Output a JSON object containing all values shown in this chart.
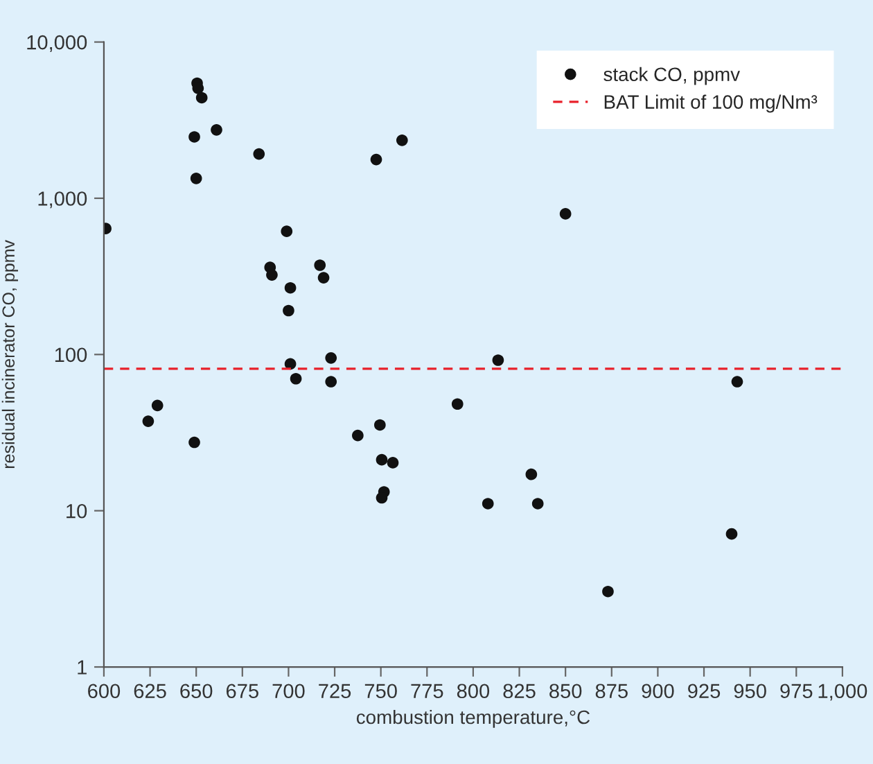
{
  "chart_data": {
    "type": "scatter",
    "xlabel": "combustion temperature,°C",
    "ylabel": "residual incinerator CO, ppmv",
    "series": [
      {
        "name": "stack CO, ppmv",
        "color": "#111111",
        "x": [
          650.5,
          651,
          653,
          649,
          661,
          650,
          684,
          601,
          699,
          690,
          691,
          701,
          700,
          717,
          719,
          701,
          704,
          723,
          723,
          747.5,
          761.5,
          624,
          629,
          649,
          737.5,
          749.5,
          791.5,
          750.5,
          756.5,
          751.7,
          750.5,
          850,
          813.5,
          943,
          808,
          831.5,
          835,
          940,
          873
        ],
        "values": [
          5450,
          5060,
          4400,
          2470,
          2740,
          1340,
          1920,
          640,
          614,
          361,
          323,
          267,
          191,
          373,
          310,
          87,
          70,
          95,
          67,
          1770,
          2350,
          37.4,
          47.2,
          27.4,
          30.3,
          35.4,
          48.2,
          21.2,
          20.3,
          13.2,
          12.1,
          795,
          92,
          67,
          11.1,
          17.1,
          11.1,
          7.1,
          3.04
        ]
      }
    ],
    "ref_lines": [
      {
        "axis": "y",
        "value": 81,
        "label": "BAT Limit of 100 mg/Nm³",
        "color": "#e8202a",
        "line_style": "dashed"
      }
    ],
    "log": "y",
    "xlim": [
      600,
      1000
    ],
    "xticks": [
      600,
      625,
      650,
      675,
      700,
      725,
      750,
      775,
      800,
      825,
      850,
      875,
      900,
      925,
      950,
      975,
      {
        "value": 1000,
        "label": "1,000"
      }
    ],
    "ylim": [
      1,
      10000
    ],
    "yticks": [
      1,
      10,
      100,
      {
        "value": 1000,
        "label": "1,000"
      },
      {
        "value": 10000,
        "label": "10,000"
      }
    ],
    "marker": "circle",
    "grid": false,
    "legend": "top right"
  }
}
